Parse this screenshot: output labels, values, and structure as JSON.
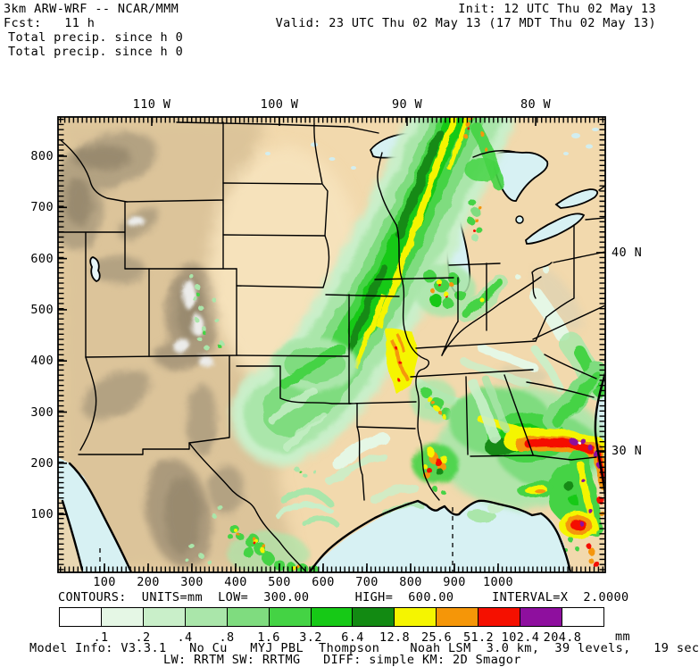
{
  "header": {
    "model_line": "3km ARW-WRF -- NCAR/MMM",
    "fcst_line": "Fcst:   11 h",
    "field_line1": "Total precip. since h 0",
    "field_line2": "Total precip. since h 0",
    "init_line": "Init: 12 UTC Thu 02 May 13",
    "valid_line": "Valid: 23 UTC Thu 02 May 13 (17 MDT Thu 02 May 13)"
  },
  "map": {
    "top_axis": [
      "110 W",
      "100 W",
      "90 W",
      "80 W"
    ],
    "right_axis": [
      "40 N",
      "30 N"
    ],
    "left_axis": [
      "800",
      "700",
      "600",
      "500",
      "400",
      "300",
      "200",
      "100"
    ],
    "bottom_axis": [
      "100",
      "200",
      "300",
      "400",
      "500",
      "600",
      "700",
      "800",
      "900",
      "1000"
    ]
  },
  "contours": {
    "label": "CONTOURS:  UNITS=mm  LOW=  300.00      HIGH=  600.00     INTERVAL=X  2.0000"
  },
  "colorbar": {
    "unit": "mm",
    "cells": [
      "#ffffff",
      "#e5f7e5",
      "#c9efc9",
      "#aae6aa",
      "#7fdc7f",
      "#44d344",
      "#16c916",
      "#128a12",
      "#f5f500",
      "#f59608",
      "#f51000",
      "#8e0f9e",
      "#ffffff"
    ],
    "labels": [
      ".1",
      ".2",
      ".4",
      ".8",
      "1.6",
      "3.2",
      "6.4",
      "12.8",
      "25.6",
      "51.2",
      "102.4",
      "204.8"
    ]
  },
  "footer": {
    "model_info": "Model Info: V3.3.1   No Cu   MYJ PBL  Thompson    Noah LSM  3.0 km,  39 levels,   19 sec",
    "physics": "LW: RRTM SW: RRTMG   DIFF: simple KM: 2D Smagor"
  },
  "chart_data": {
    "type": "heatmap",
    "title": "Total precip. since h 0 (mm)",
    "colorbar_thresholds_mm": [
      0.1,
      0.2,
      0.4,
      0.8,
      1.6,
      3.2,
      6.4,
      12.8,
      25.6,
      51.2,
      102.4,
      204.8
    ],
    "x_gridpoints": [
      100,
      200,
      300,
      400,
      500,
      600,
      700,
      800,
      900,
      1000
    ],
    "y_gridpoints": [
      100,
      200,
      300,
      400,
      500,
      600,
      700,
      800
    ],
    "longitudes": [
      "110 W",
      "100 W",
      "90 W",
      "80 W"
    ],
    "latitudes": [
      "40 N",
      "30 N"
    ],
    "legend_position": "bottom"
  },
  "colors": {
    "land": "#f2d9ad",
    "water": "#d7f1f3",
    "border": "#000000"
  }
}
